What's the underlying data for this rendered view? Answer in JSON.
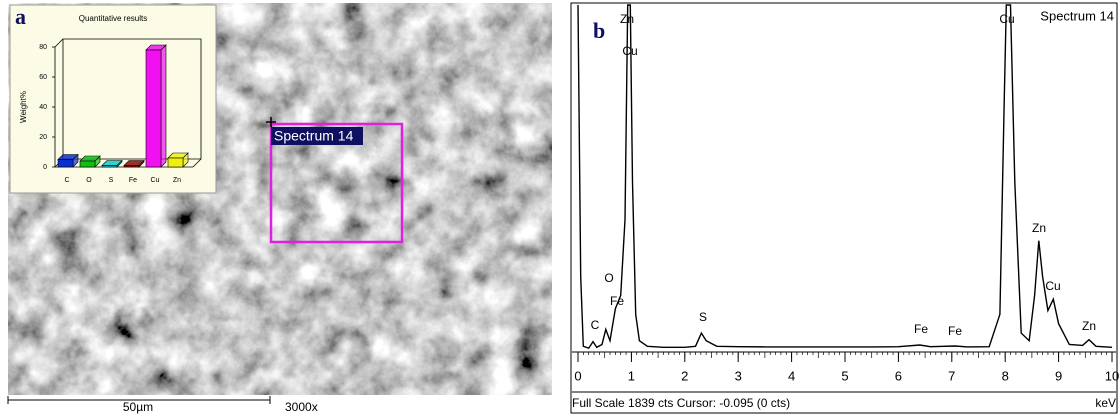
{
  "chart_data": [
    {
      "type": "bar",
      "panel_label": "a",
      "title": "Quantitative results",
      "ylabel": "Weight%",
      "categories": [
        "C",
        "O",
        "S",
        "Fe",
        "Cu",
        "Zn"
      ],
      "values": [
        5,
        4,
        1,
        1,
        78,
        6
      ],
      "colors": [
        "#0a2fd0",
        "#10c010",
        "#10c8c8",
        "#8a0a0a",
        "#f010f0",
        "#f0f010"
      ],
      "ylim": [
        0,
        80
      ],
      "yticks": [
        0,
        20,
        40,
        60,
        80
      ],
      "image_labels": {
        "spectrum": "Spectrum 14",
        "scale_bar": "50µm",
        "magnification": "3000x"
      }
    },
    {
      "type": "line",
      "panel_label": "b",
      "spectrum_name": "Spectrum 14",
      "xlabel": "keV",
      "status": "Full Scale 1839 cts Cursor: -0.095  (0 cts)",
      "peak_labels": [
        "C",
        "O",
        "Fe",
        "Zn",
        "Cu",
        "S",
        "Fe",
        "Fe",
        "Cu",
        "Zn",
        "Cu",
        "Zn"
      ],
      "color": "#000000",
      "x": [
        0.0,
        0.05,
        0.1,
        0.2,
        0.28,
        0.35,
        0.45,
        0.52,
        0.6,
        0.7,
        0.8,
        0.88,
        0.93,
        0.98,
        1.02,
        1.08,
        1.15,
        1.3,
        1.6,
        2.0,
        2.2,
        2.31,
        2.4,
        2.6,
        3.0,
        3.5,
        4.0,
        4.5,
        5.0,
        5.5,
        6.0,
        6.4,
        6.6,
        7.06,
        7.3,
        7.7,
        7.9,
        7.98,
        8.02,
        8.1,
        8.18,
        8.3,
        8.45,
        8.55,
        8.63,
        8.7,
        8.8,
        8.9,
        9.0,
        9.2,
        9.45,
        9.57,
        9.7,
        10.0
      ],
      "values": [
        1839,
        400,
        30,
        20,
        55,
        25,
        40,
        120,
        60,
        230,
        300,
        700,
        1839,
        1839,
        900,
        200,
        60,
        30,
        25,
        25,
        30,
        100,
        60,
        30,
        28,
        27,
        27,
        27,
        27,
        27,
        28,
        37,
        28,
        32,
        27,
        28,
        200,
        1300,
        1839,
        1839,
        900,
        100,
        60,
        300,
        590,
        400,
        220,
        280,
        150,
        40,
        35,
        65,
        30,
        25
      ],
      "xlim": [
        0,
        10
      ],
      "xticks": [
        0,
        1,
        2,
        3,
        4,
        5,
        6,
        7,
        8,
        9,
        10
      ],
      "ylim": [
        0,
        1839
      ]
    }
  ]
}
